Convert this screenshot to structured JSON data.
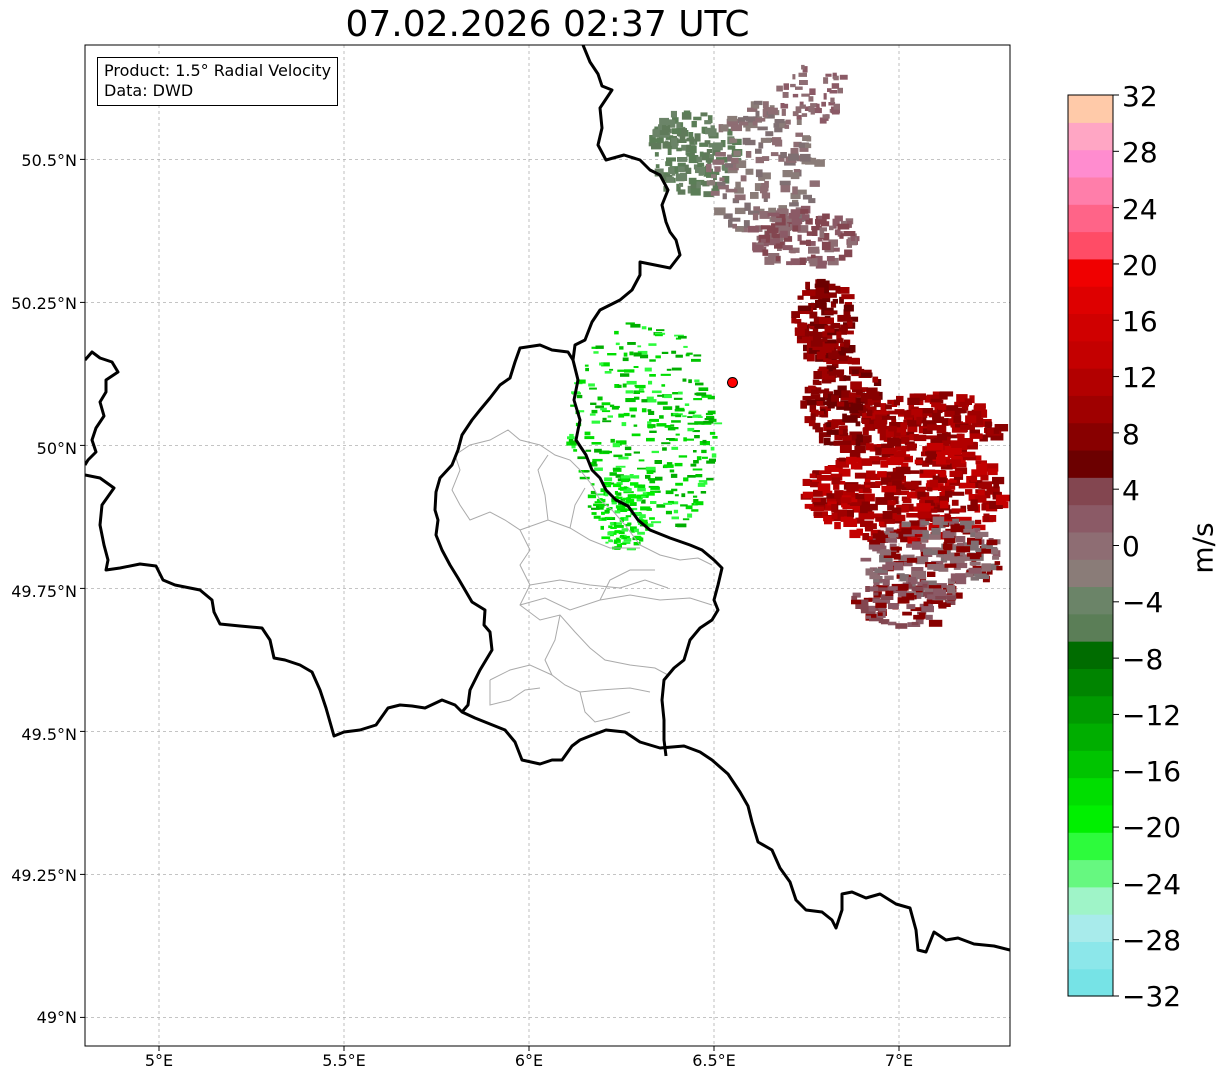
{
  "title": "07.02.2026 02:37 UTC",
  "info": {
    "product": "Product: 1.5° Radial Velocity",
    "data_source": "Data: DWD"
  },
  "map": {
    "lon_range": [
      4.8,
      7.3
    ],
    "lat_range": [
      48.95,
      50.7
    ],
    "lat_ticks": [
      {
        "value": 50.5,
        "label": "50.5°N"
      },
      {
        "value": 50.25,
        "label": "50.25°N"
      },
      {
        "value": 50.0,
        "label": "50°N"
      },
      {
        "value": 49.75,
        "label": "49.75°N"
      },
      {
        "value": 49.5,
        "label": "49.5°N"
      },
      {
        "value": 49.25,
        "label": "49.25°N"
      },
      {
        "value": 49.0,
        "label": "49°N"
      }
    ],
    "lon_ticks": [
      {
        "value": 5.0,
        "label": "5°E"
      },
      {
        "value": 5.5,
        "label": "5.5°E"
      },
      {
        "value": 6.0,
        "label": "6°E"
      },
      {
        "value": 6.5,
        "label": "6.5°E"
      },
      {
        "value": 7.0,
        "label": "7°E"
      }
    ],
    "grid": true,
    "radar_site": {
      "lon": 6.55,
      "lat": 50.11,
      "color": "#ff0000"
    }
  },
  "colorbar": {
    "unit": "m/s",
    "min": -32,
    "max": 32,
    "ticks": [
      "32",
      "28",
      "24",
      "20",
      "16",
      "12",
      "8",
      "4",
      "0",
      "−4",
      "−8",
      "−12",
      "−16",
      "−20",
      "−24",
      "−28",
      "−32"
    ],
    "colors_low_to_high": [
      "#76e3e6",
      "#8ce7ea",
      "#a8ebeb",
      "#9ff4c8",
      "#66f880",
      "#2dfb3c",
      "#00f000",
      "#00de00",
      "#00c400",
      "#00ae00",
      "#009a00",
      "#008400",
      "#006c00",
      "#5b7e57",
      "#6b8468",
      "#8a7c78",
      "#8e6d73",
      "#8b5a66",
      "#834650",
      "#6c0000",
      "#880000",
      "#9f0000",
      "#b20000",
      "#c40000",
      "#d00000",
      "#de0000",
      "#f00000",
      "#ff4c66",
      "#ff6488",
      "#ff7eaa",
      "#ff8ccf",
      "#ffa6c4",
      "#ffcaa9"
    ]
  }
}
